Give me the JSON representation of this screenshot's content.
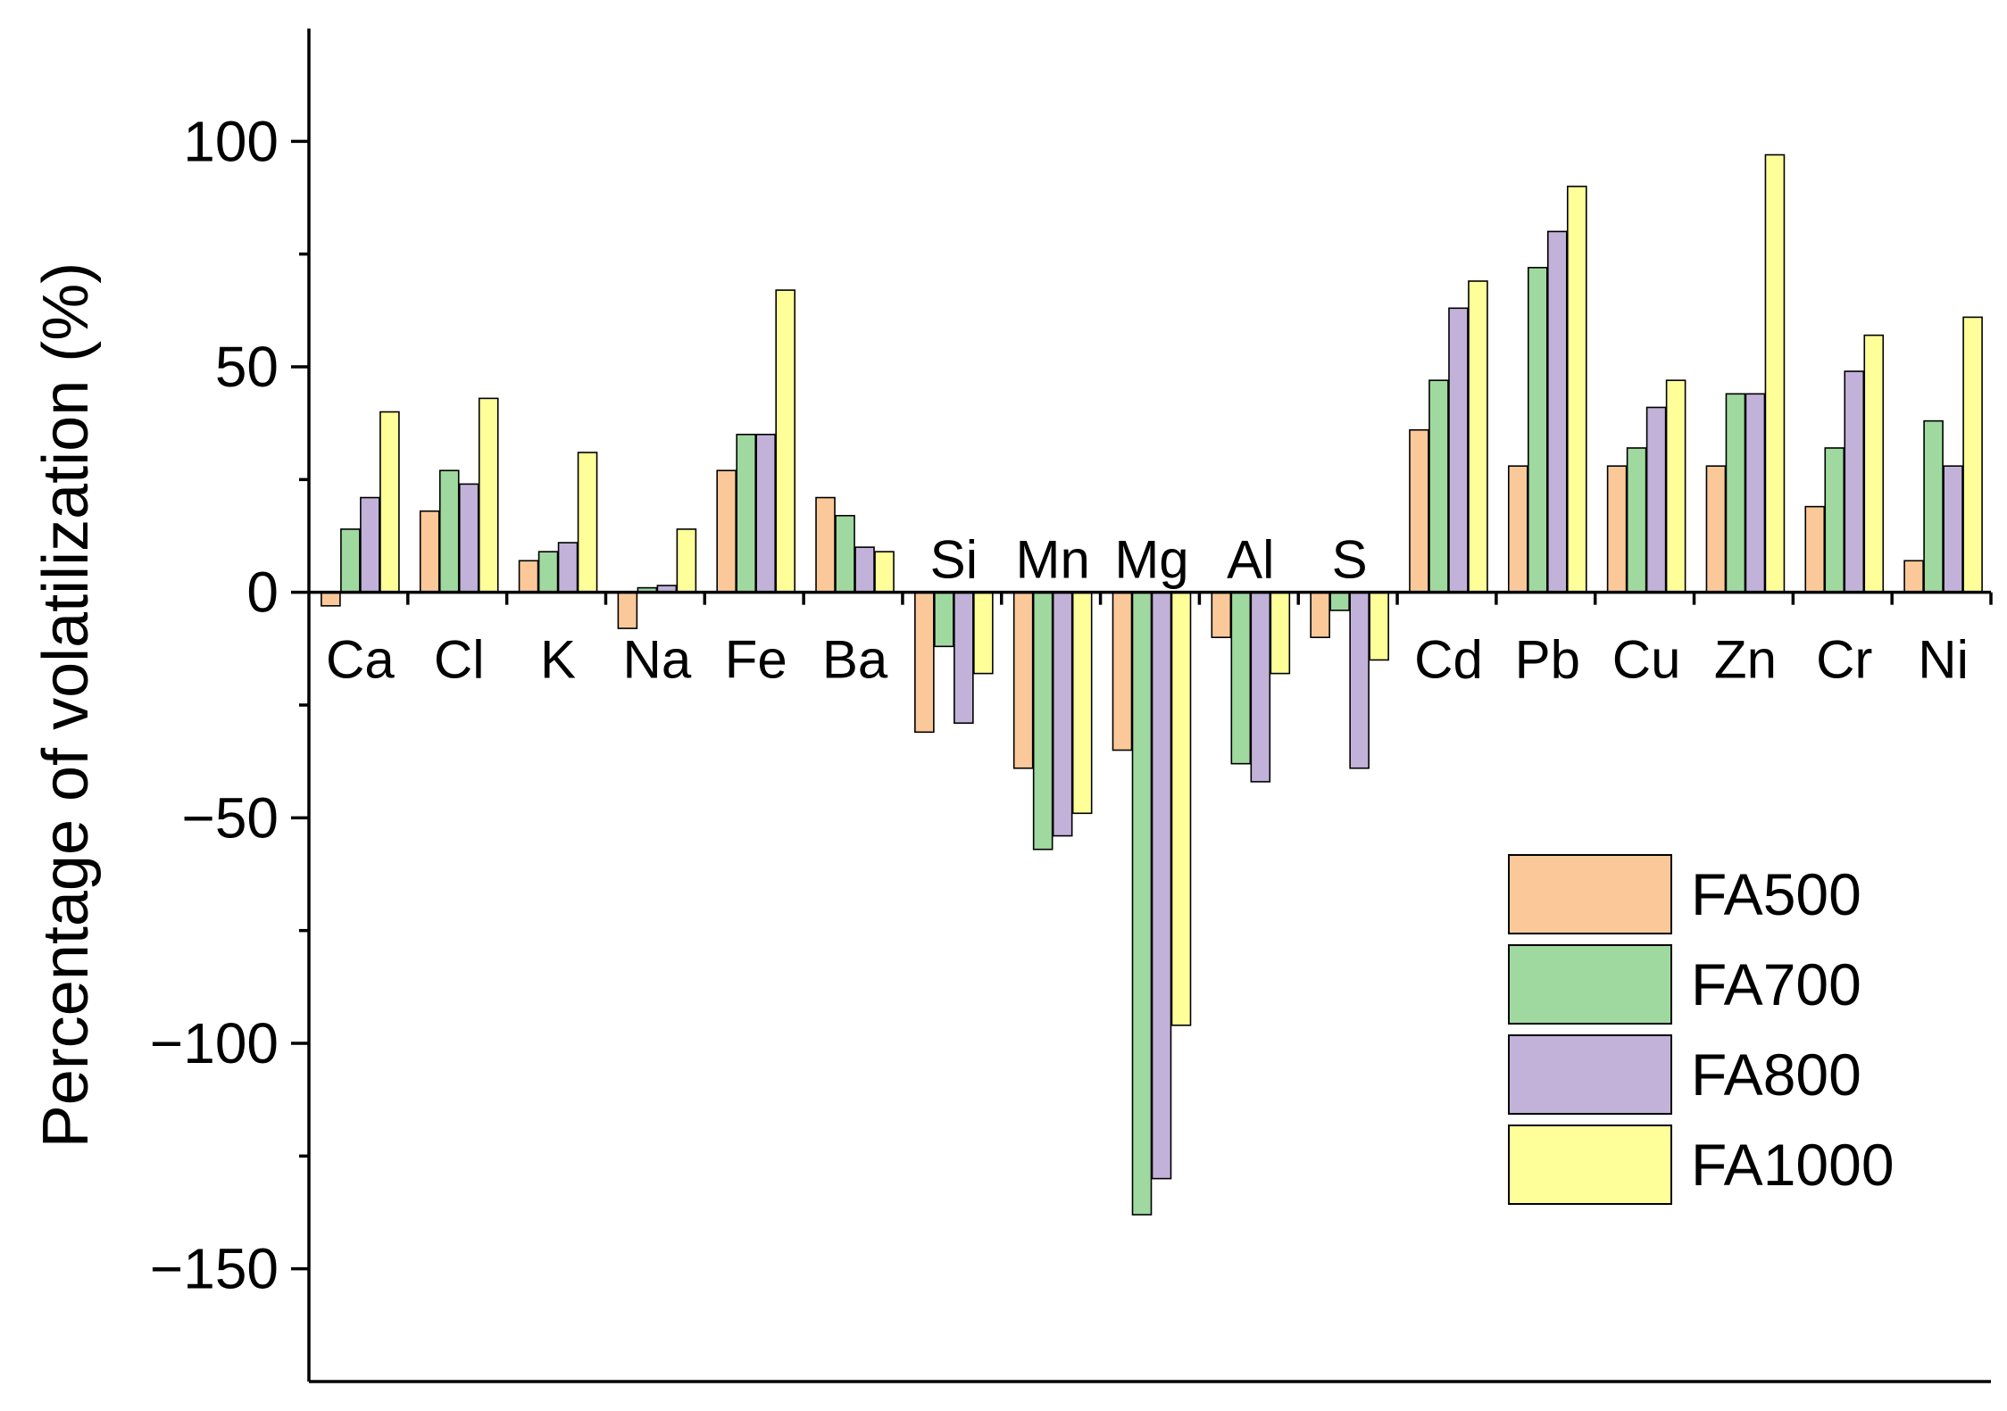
{
  "chart_data": {
    "type": "bar",
    "ylabel": "Percentage of volatilization (%)",
    "xlabel": "",
    "ylim": [
      -175,
      125
    ],
    "yticks": [
      100,
      50,
      0,
      -50,
      -100,
      -150
    ],
    "ytick_labels": [
      "100",
      "50",
      "0",
      "−50",
      "−100",
      "−150"
    ],
    "categories": [
      "Ca",
      "Cl",
      "K",
      "Na",
      "Fe",
      "Ba",
      "Si",
      "Mn",
      "Mg",
      "Al",
      "S",
      "Cd",
      "Pb",
      "Cu",
      "Zn",
      "Cr",
      "Ni"
    ],
    "series": [
      {
        "name": "FA500",
        "color": "#FBC999",
        "values": [
          -3,
          18,
          7,
          -8,
          27,
          21,
          -31,
          -39,
          -35,
          -10,
          -10,
          36,
          28,
          28,
          28,
          19,
          7
        ]
      },
      {
        "name": "FA700",
        "color": "#9FD99F",
        "values": [
          14,
          27,
          9,
          1,
          35,
          17,
          -12,
          -57,
          -138,
          -38,
          -4,
          47,
          72,
          32,
          44,
          32,
          38
        ]
      },
      {
        "name": "FA800",
        "color": "#C2B2DA",
        "values": [
          21,
          24,
          11,
          1.5,
          35,
          10,
          -29,
          -54,
          -130,
          -42,
          -39,
          63,
          80,
          41,
          44,
          49,
          28
        ]
      },
      {
        "name": "FA1000",
        "color": "#FFFF99",
        "values": [
          40,
          43,
          31,
          14,
          67,
          9,
          -18,
          -49,
          -96,
          -18,
          -15,
          69,
          90,
          47,
          97,
          57,
          61
        ]
      }
    ],
    "legend_position": "bottom-right",
    "grid": false
  }
}
